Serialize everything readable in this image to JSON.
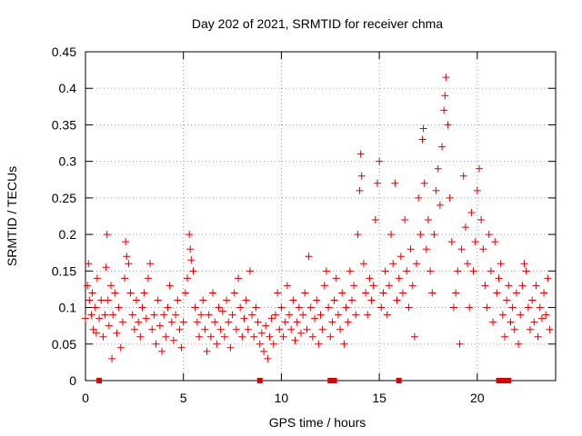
{
  "chart_data": {
    "type": "scatter",
    "title": "Day 202 of 2021, SRMTID for receiver chma",
    "xlabel": "GPS time / hours",
    "ylabel": "SRMTID / TECUs",
    "xlim": [
      0,
      24
    ],
    "ylim": [
      0,
      0.45
    ],
    "x_ticks": [
      0,
      5,
      10,
      15,
      20
    ],
    "y_ticks": [
      0,
      0.05,
      0.1,
      0.15,
      0.2,
      0.25,
      0.3,
      0.35,
      0.4,
      0.45
    ],
    "x_tick_labels": [
      "0",
      "5",
      "10",
      "15",
      "20"
    ],
    "y_tick_labels": [
      "0",
      "0.05",
      "0.1",
      "0.15",
      "0.2",
      "0.25",
      "0.3",
      "0.35",
      "0.4",
      "0.45"
    ],
    "grid": true,
    "marker": "+",
    "color": "#e00000",
    "series": [
      {
        "name": "SRMTID",
        "points": [
          [
            0.0,
            0.085
          ],
          [
            0.1,
            0.13
          ],
          [
            0.15,
            0.16
          ],
          [
            0.2,
            0.11
          ],
          [
            0.3,
            0.09
          ],
          [
            0.35,
            0.12
          ],
          [
            0.4,
            0.07
          ],
          [
            0.5,
            0.1
          ],
          [
            0.55,
            0.065
          ],
          [
            0.6,
            0.14
          ],
          [
            0.7,
            0.085
          ],
          [
            0.8,
            0.11
          ],
          [
            0.9,
            0.06
          ],
          [
            1.0,
            0.09
          ],
          [
            1.05,
            0.155
          ],
          [
            1.1,
            0.2
          ],
          [
            1.15,
            0.11
          ],
          [
            1.2,
            0.075
          ],
          [
            1.3,
            0.13
          ],
          [
            1.35,
            0.03
          ],
          [
            1.4,
            0.09
          ],
          [
            1.5,
            0.12
          ],
          [
            1.6,
            0.065
          ],
          [
            1.7,
            0.1
          ],
          [
            1.8,
            0.045
          ],
          [
            1.9,
            0.08
          ],
          [
            2.0,
            0.14
          ],
          [
            2.05,
            0.19
          ],
          [
            2.1,
            0.17
          ],
          [
            2.2,
            0.16
          ],
          [
            2.3,
            0.12
          ],
          [
            2.4,
            0.09
          ],
          [
            2.5,
            0.07
          ],
          [
            2.6,
            0.11
          ],
          [
            2.7,
            0.08
          ],
          [
            2.8,
            0.06
          ],
          [
            2.9,
            0.1
          ],
          [
            3.0,
            0.12
          ],
          [
            3.1,
            0.085
          ],
          [
            3.2,
            0.14
          ],
          [
            3.3,
            0.16
          ],
          [
            3.4,
            0.07
          ],
          [
            3.5,
            0.09
          ],
          [
            3.6,
            0.05
          ],
          [
            3.7,
            0.11
          ],
          [
            3.8,
            0.075
          ],
          [
            3.9,
            0.04
          ],
          [
            4.0,
            0.09
          ],
          [
            4.1,
            0.06
          ],
          [
            4.2,
            0.1
          ],
          [
            4.3,
            0.13
          ],
          [
            4.4,
            0.08
          ],
          [
            4.5,
            0.055
          ],
          [
            4.6,
            0.09
          ],
          [
            4.7,
            0.11
          ],
          [
            4.8,
            0.07
          ],
          [
            4.9,
            0.045
          ],
          [
            5.0,
            0.08
          ],
          [
            5.1,
            0.12
          ],
          [
            5.2,
            0.14
          ],
          [
            5.3,
            0.2
          ],
          [
            5.35,
            0.18
          ],
          [
            5.4,
            0.165
          ],
          [
            5.5,
            0.15
          ],
          [
            5.6,
            0.1
          ],
          [
            5.7,
            0.08
          ],
          [
            5.8,
            0.06
          ],
          [
            5.9,
            0.09
          ],
          [
            6.0,
            0.11
          ],
          [
            6.1,
            0.07
          ],
          [
            6.2,
            0.04
          ],
          [
            6.3,
            0.09
          ],
          [
            6.4,
            0.06
          ],
          [
            6.5,
            0.12
          ],
          [
            6.6,
            0.08
          ],
          [
            6.7,
            0.05
          ],
          [
            6.8,
            0.1
          ],
          [
            6.9,
            0.07
          ],
          [
            7.0,
            0.095
          ],
          [
            7.1,
            0.06
          ],
          [
            7.2,
            0.11
          ],
          [
            7.3,
            0.08
          ],
          [
            7.4,
            0.045
          ],
          [
            7.5,
            0.09
          ],
          [
            7.6,
            0.12
          ],
          [
            7.7,
            0.07
          ],
          [
            7.8,
            0.14
          ],
          [
            7.9,
            0.1
          ],
          [
            8.0,
            0.06
          ],
          [
            8.1,
            0.085
          ],
          [
            8.2,
            0.11
          ],
          [
            8.3,
            0.07
          ],
          [
            8.4,
            0.15
          ],
          [
            8.5,
            0.09
          ],
          [
            8.6,
            0.06
          ],
          [
            8.7,
            0.1
          ],
          [
            8.8,
            0.08
          ],
          [
            8.9,
            0.05
          ],
          [
            9.0,
            0.065
          ],
          [
            9.1,
            0.04
          ],
          [
            9.2,
            0.075
          ],
          [
            9.3,
            0.03
          ],
          [
            9.4,
            0.06
          ],
          [
            9.5,
            0.085
          ],
          [
            9.6,
            0.05
          ],
          [
            9.7,
            0.09
          ],
          [
            9.8,
            0.12
          ],
          [
            9.9,
            0.07
          ],
          [
            10.0,
            0.1
          ],
          [
            10.1,
            0.06
          ],
          [
            10.2,
            0.08
          ],
          [
            10.3,
            0.13
          ],
          [
            10.4,
            0.09
          ],
          [
            10.5,
            0.07
          ],
          [
            10.6,
            0.11
          ],
          [
            10.7,
            0.055
          ],
          [
            10.8,
            0.08
          ],
          [
            10.9,
            0.1
          ],
          [
            11.0,
            0.065
          ],
          [
            11.1,
            0.09
          ],
          [
            11.2,
            0.12
          ],
          [
            11.3,
            0.07
          ],
          [
            11.4,
            0.17
          ],
          [
            11.5,
            0.1
          ],
          [
            11.6,
            0.06
          ],
          [
            11.7,
            0.085
          ],
          [
            11.8,
            0.11
          ],
          [
            11.9,
            0.05
          ],
          [
            12.0,
            0.09
          ],
          [
            12.1,
            0.07
          ],
          [
            12.2,
            0.13
          ],
          [
            12.3,
            0.15
          ],
          [
            12.4,
            0.1
          ],
          [
            12.5,
            0.06
          ],
          [
            12.6,
            0.08
          ],
          [
            12.7,
            0.11
          ],
          [
            12.8,
            0.14
          ],
          [
            12.9,
            0.09
          ],
          [
            13.0,
            0.07
          ],
          [
            13.1,
            0.12
          ],
          [
            13.2,
            0.05
          ],
          [
            13.3,
            0.1
          ],
          [
            13.4,
            0.08
          ],
          [
            13.5,
            0.15
          ],
          [
            13.6,
            0.11
          ],
          [
            13.7,
            0.13
          ],
          [
            13.8,
            0.09
          ],
          [
            13.9,
            0.2
          ],
          [
            14.0,
            0.26
          ],
          [
            14.05,
            0.31
          ],
          [
            14.1,
            0.28
          ],
          [
            14.2,
            0.16
          ],
          [
            14.3,
            0.12
          ],
          [
            14.4,
            0.09
          ],
          [
            14.5,
            0.14
          ],
          [
            14.6,
            0.11
          ],
          [
            14.7,
            0.13
          ],
          [
            14.8,
            0.22
          ],
          [
            14.9,
            0.27
          ],
          [
            15.0,
            0.3
          ],
          [
            15.1,
            0.1
          ],
          [
            15.2,
            0.12
          ],
          [
            15.3,
            0.15
          ],
          [
            15.4,
            0.09
          ],
          [
            15.5,
            0.13
          ],
          [
            15.6,
            0.2
          ],
          [
            15.7,
            0.16
          ],
          [
            15.8,
            0.27
          ],
          [
            15.9,
            0.11
          ],
          [
            16.0,
            0.14
          ],
          [
            16.1,
            0.17
          ],
          [
            16.2,
            0.12
          ],
          [
            16.3,
            0.22
          ],
          [
            16.4,
            0.15
          ],
          [
            16.5,
            0.1
          ],
          [
            16.6,
            0.18
          ],
          [
            16.7,
            0.13
          ],
          [
            16.8,
            0.06
          ],
          [
            16.9,
            0.16
          ],
          [
            17.0,
            0.25
          ],
          [
            17.1,
            0.2
          ],
          [
            17.2,
            0.33
          ],
          [
            17.25,
            0.345
          ],
          [
            17.3,
            0.27
          ],
          [
            17.4,
            0.18
          ],
          [
            17.5,
            0.22
          ],
          [
            17.6,
            0.15
          ],
          [
            17.7,
            0.12
          ],
          [
            17.8,
            0.2
          ],
          [
            17.9,
            0.26
          ],
          [
            18.0,
            0.29
          ],
          [
            18.1,
            0.24
          ],
          [
            18.2,
            0.32
          ],
          [
            18.3,
            0.37
          ],
          [
            18.35,
            0.39
          ],
          [
            18.4,
            0.415
          ],
          [
            18.5,
            0.35
          ],
          [
            18.6,
            0.25
          ],
          [
            18.7,
            0.19
          ],
          [
            18.8,
            0.1
          ],
          [
            18.9,
            0.12
          ],
          [
            19.0,
            0.15
          ],
          [
            19.1,
            0.05
          ],
          [
            19.2,
            0.18
          ],
          [
            19.3,
            0.28
          ],
          [
            19.4,
            0.21
          ],
          [
            19.5,
            0.16
          ],
          [
            19.6,
            0.1
          ],
          [
            19.7,
            0.23
          ],
          [
            19.8,
            0.15
          ],
          [
            19.9,
            0.19
          ],
          [
            20.0,
            0.26
          ],
          [
            20.1,
            0.29
          ],
          [
            20.2,
            0.22
          ],
          [
            20.3,
            0.18
          ],
          [
            20.4,
            0.13
          ],
          [
            20.5,
            0.1
          ],
          [
            20.6,
            0.2
          ],
          [
            20.7,
            0.15
          ],
          [
            20.8,
            0.08
          ],
          [
            20.9,
            0.19
          ],
          [
            21.0,
            0.12
          ],
          [
            21.1,
            0.14
          ],
          [
            21.2,
            0.16
          ],
          [
            21.3,
            0.09
          ],
          [
            21.4,
            0.06
          ],
          [
            21.5,
            0.11
          ],
          [
            21.6,
            0.13
          ],
          [
            21.7,
            0.08
          ],
          [
            21.8,
            0.1
          ],
          [
            21.9,
            0.07
          ],
          [
            22.0,
            0.12
          ],
          [
            22.1,
            0.05
          ],
          [
            22.2,
            0.09
          ],
          [
            22.3,
            0.13
          ],
          [
            22.4,
            0.16
          ],
          [
            22.5,
            0.15
          ],
          [
            22.6,
            0.1
          ],
          [
            22.7,
            0.07
          ],
          [
            22.8,
            0.11
          ],
          [
            22.9,
            0.08
          ],
          [
            23.0,
            0.13
          ],
          [
            23.1,
            0.06
          ],
          [
            23.2,
            0.1
          ],
          [
            23.3,
            0.085
          ],
          [
            23.4,
            0.12
          ],
          [
            23.5,
            0.09
          ],
          [
            23.6,
            0.14
          ],
          [
            23.7,
            0.07
          ]
        ]
      },
      {
        "name": "zero-level markers",
        "points": [
          [
            0.7,
            0.0
          ],
          [
            8.9,
            0.0
          ],
          [
            12.5,
            0.0
          ],
          [
            12.6,
            0.0
          ],
          [
            12.7,
            0.0
          ],
          [
            16.0,
            0.0
          ],
          [
            21.1,
            0.0
          ],
          [
            21.2,
            0.0
          ],
          [
            21.3,
            0.0
          ],
          [
            21.4,
            0.0
          ],
          [
            21.5,
            0.0
          ],
          [
            21.6,
            0.0
          ]
        ]
      }
    ]
  }
}
